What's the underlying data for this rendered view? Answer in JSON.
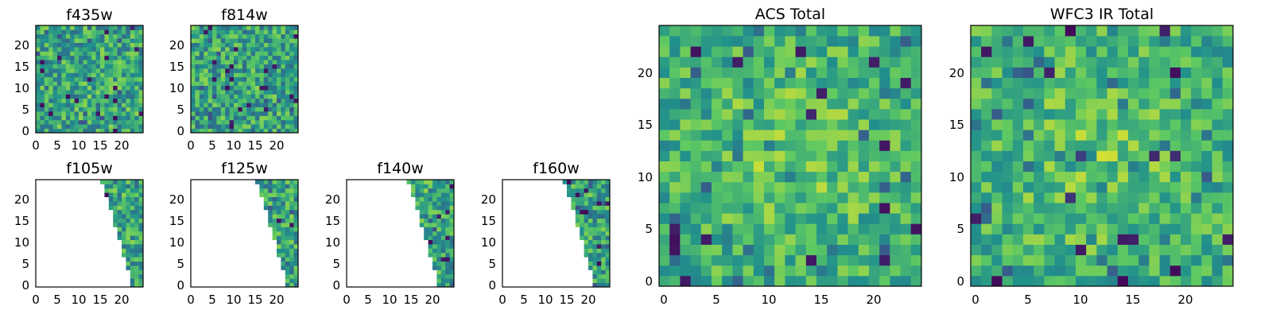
{
  "colors": {
    "colormap": "viridis",
    "colormap_stops": [
      "#440154",
      "#3b528b",
      "#21918c",
      "#5ec962",
      "#fde725"
    ],
    "blank": "#ffffff",
    "frame": "#000000"
  },
  "chart_data": [
    {
      "type": "heatmap",
      "title": "f435w",
      "xlabel": "",
      "ylabel": "",
      "grid_size": 25,
      "xticks": [
        "0",
        "5",
        "10",
        "15",
        "20"
      ],
      "yticks": [
        "0",
        "5",
        "10",
        "15",
        "20"
      ],
      "coverage": "full",
      "texture": "noisy",
      "value_range": [
        0,
        1
      ],
      "seed": 11
    },
    {
      "type": "heatmap",
      "title": "f814w",
      "xlabel": "",
      "ylabel": "",
      "grid_size": 25,
      "xticks": [
        "0",
        "5",
        "10",
        "15",
        "20"
      ],
      "yticks": [
        "0",
        "5",
        "10",
        "15",
        "20"
      ],
      "coverage": "full",
      "texture": "noisy",
      "value_range": [
        0,
        1
      ],
      "seed": 23
    },
    {
      "type": "heatmap",
      "title": "f105w",
      "xlabel": "",
      "ylabel": "",
      "grid_size": 25,
      "xticks": [
        "0",
        "5",
        "10",
        "15",
        "20"
      ],
      "yticks": [
        "0",
        "5",
        "10",
        "15",
        "20"
      ],
      "coverage": "partial",
      "coverage_edge": {
        "x_at_top": 15,
        "x_at_bottom": 22
      },
      "texture": "noisy",
      "value_range": [
        0,
        1
      ],
      "seed": 37
    },
    {
      "type": "heatmap",
      "title": "f125w",
      "xlabel": "",
      "ylabel": "",
      "grid_size": 25,
      "xticks": [
        "0",
        "5",
        "10",
        "15",
        "20"
      ],
      "yticks": [
        "0",
        "5",
        "10",
        "15",
        "20"
      ],
      "coverage": "partial",
      "coverage_edge": {
        "x_at_top": 15,
        "x_at_bottom": 22
      },
      "texture": "noisy",
      "value_range": [
        0,
        1
      ],
      "seed": 41
    },
    {
      "type": "heatmap",
      "title": "f140w",
      "xlabel": "",
      "ylabel": "",
      "grid_size": 25,
      "xticks": [
        "0",
        "5",
        "10",
        "15",
        "20"
      ],
      "yticks": [
        "0",
        "5",
        "10",
        "15",
        "20"
      ],
      "coverage": "partial",
      "coverage_edge": {
        "x_at_top": 14,
        "x_at_bottom": 21
      },
      "texture": "noisy",
      "value_range": [
        0,
        1
      ],
      "seed": 53
    },
    {
      "type": "heatmap",
      "title": "f160w",
      "xlabel": "",
      "ylabel": "",
      "grid_size": 25,
      "xticks": [
        "0",
        "5",
        "10",
        "15",
        "20"
      ],
      "yticks": [
        "0",
        "5",
        "10",
        "15",
        "20"
      ],
      "coverage": "partial",
      "coverage_edge": {
        "x_at_top": 14,
        "x_at_bottom": 21
      },
      "texture": "noisy",
      "value_range": [
        0,
        1
      ],
      "seed": 67
    },
    {
      "type": "heatmap",
      "title": "ACS Total",
      "xlabel": "",
      "ylabel": "",
      "grid_size": 25,
      "xticks": [
        "0",
        "5",
        "10",
        "15",
        "20"
      ],
      "yticks": [
        "0",
        "5",
        "10",
        "15",
        "20"
      ],
      "coverage": "full",
      "texture": "smooth",
      "value_range": [
        0,
        1
      ],
      "seed": 79
    },
    {
      "type": "heatmap",
      "title": "WFC3 IR Total",
      "xlabel": "",
      "ylabel": "",
      "grid_size": 25,
      "xticks": [
        "0",
        "5",
        "10",
        "15",
        "20"
      ],
      "yticks": [
        "0",
        "5",
        "10",
        "15",
        "20"
      ],
      "coverage": "full",
      "texture": "smooth",
      "value_range": [
        0,
        1
      ],
      "seed": 97
    }
  ]
}
